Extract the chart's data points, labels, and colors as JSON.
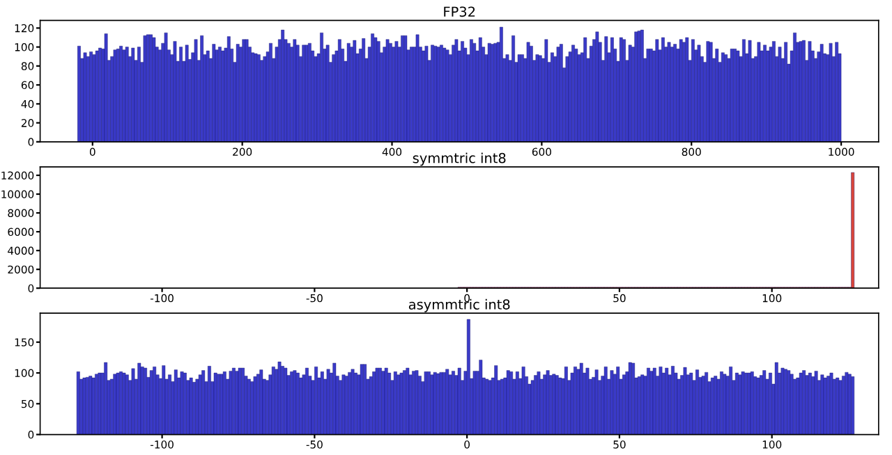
{
  "chart_data": [
    {
      "type": "histogram",
      "title": "FP32",
      "color": "#3a3ac8",
      "xlim": [
        -70,
        1050
      ],
      "xticks": [
        0,
        200,
        400,
        600,
        800,
        1000
      ],
      "ylim": [
        0,
        128
      ],
      "yticks": [
        0,
        20,
        40,
        60,
        80,
        100,
        120
      ],
      "grid": false,
      "bins": [
        -20,
        -16,
        -12,
        -8,
        -4,
        0,
        4,
        8,
        12,
        16,
        20,
        24,
        28,
        32,
        36,
        40,
        44,
        48,
        52,
        56,
        60,
        64,
        68,
        72,
        76,
        80,
        84,
        88,
        92,
        96,
        100,
        104,
        108,
        112,
        116,
        120,
        124,
        128,
        132,
        136,
        140,
        144,
        148,
        152,
        156,
        160,
        164,
        168,
        172,
        176,
        180,
        184,
        188,
        192,
        196,
        200,
        204,
        208,
        212,
        216,
        220,
        224,
        228,
        232,
        236,
        240,
        244,
        248,
        252,
        256,
        260,
        264,
        268,
        272,
        276,
        280,
        284,
        288,
        292,
        296,
        300,
        304,
        308,
        312,
        316,
        320,
        324,
        328,
        332,
        336,
        340,
        344,
        348,
        352,
        356,
        360,
        364,
        368,
        372,
        376,
        380,
        384,
        388,
        392,
        396,
        400,
        404,
        408,
        412,
        416,
        420,
        424,
        428,
        432,
        436,
        440,
        444,
        448,
        452,
        456,
        460,
        464,
        468,
        472,
        476,
        480,
        484,
        488,
        492,
        496,
        500,
        504,
        508,
        512,
        516,
        520,
        524,
        528,
        532,
        536,
        540,
        544,
        548,
        552,
        556,
        560,
        564,
        568,
        572,
        576,
        580,
        584,
        588,
        592,
        596,
        600,
        604,
        608,
        612,
        616,
        620,
        624,
        628,
        632,
        636,
        640,
        644,
        648,
        652,
        656,
        660,
        664,
        668,
        672,
        676,
        680,
        684,
        688,
        692,
        696,
        700,
        704,
        708,
        712,
        716,
        720,
        724,
        728,
        732,
        736,
        740,
        744,
        748,
        752,
        756,
        760,
        764,
        768,
        772,
        776,
        780,
        784,
        788,
        792,
        796,
        800,
        804,
        808,
        812,
        816,
        820,
        824,
        828,
        832,
        836,
        840,
        844,
        848,
        852,
        856,
        860,
        864,
        868,
        872,
        876,
        880,
        884,
        888,
        892,
        896,
        900,
        904,
        908,
        912,
        916,
        920,
        924,
        928,
        932,
        936,
        940,
        944,
        948,
        952,
        956,
        960,
        964,
        968,
        972,
        976,
        980,
        984,
        988,
        992,
        996,
        1000
      ],
      "values": [
        101,
        88,
        94,
        90,
        95,
        92,
        96,
        99,
        98,
        114,
        86,
        90,
        97,
        98,
        101,
        97,
        100,
        90,
        99,
        86,
        100,
        84,
        112,
        113,
        113,
        110,
        100,
        97,
        104,
        115,
        97,
        92,
        106,
        85,
        100,
        85,
        102,
        87,
        94,
        108,
        86,
        112,
        92,
        96,
        88,
        103,
        97,
        100,
        96,
        99,
        111,
        98,
        84,
        103,
        100,
        108,
        108,
        100,
        94,
        93,
        92,
        86,
        90,
        95,
        104,
        88,
        100,
        108,
        118,
        108,
        104,
        100,
        108,
        102,
        90,
        102,
        102,
        104,
        96,
        90,
        93,
        115,
        98,
        102,
        84,
        92,
        96,
        108,
        98,
        85,
        104,
        100,
        107,
        93,
        98,
        109,
        88,
        100,
        114,
        110,
        106,
        94,
        100,
        108,
        104,
        100,
        106,
        100,
        112,
        112,
        97,
        100,
        100,
        113,
        100,
        96,
        101,
        86,
        102,
        101,
        100,
        102,
        99,
        97,
        92,
        102,
        108,
        96,
        106,
        99,
        92,
        108,
        104,
        96,
        110,
        100,
        92,
        104,
        103,
        104,
        105,
        121,
        88,
        92,
        86,
        112,
        84,
        92,
        92,
        88,
        105,
        101,
        86,
        92,
        91,
        88,
        108,
        84,
        94,
        90,
        100,
        103,
        78,
        90,
        95,
        102,
        98,
        92,
        94,
        110,
        88,
        101,
        108,
        116,
        105,
        86,
        111,
        94,
        110,
        98,
        85,
        110,
        108,
        86,
        102,
        100,
        116,
        117,
        118,
        88,
        98,
        98,
        96,
        108,
        97,
        110,
        100,
        105,
        100,
        103,
        98,
        108,
        105,
        110,
        86,
        108,
        97,
        102,
        90,
        84,
        106,
        105,
        88,
        98,
        84,
        94,
        92,
        88,
        98,
        98,
        96,
        90,
        108,
        93,
        107,
        88,
        90,
        105,
        96,
        102,
        96,
        100,
        106,
        90,
        100,
        88,
        105,
        82,
        96,
        115,
        105,
        106,
        107,
        86,
        106,
        96,
        88,
        95,
        103,
        93,
        92,
        104,
        90,
        105,
        93
      ]
    },
    {
      "type": "histogram",
      "title": "symmtric int8",
      "color": "#d9443a",
      "xlim": [
        -140,
        135
      ],
      "xticks": [
        -100,
        -50,
        0,
        50,
        100
      ],
      "ylim": [
        0,
        12900
      ],
      "yticks": [
        0,
        2000,
        4000,
        6000,
        8000,
        10000,
        12000
      ],
      "grid": false,
      "bins": [
        -3,
        -2,
        -1,
        0,
        1,
        2,
        3,
        4,
        5,
        6,
        7,
        8,
        9,
        10,
        11,
        12,
        13,
        14,
        15,
        16,
        17,
        18,
        19,
        20,
        21,
        22,
        23,
        24,
        25,
        26,
        27,
        28,
        29,
        30,
        31,
        32,
        33,
        34,
        35,
        36,
        37,
        38,
        39,
        40,
        41,
        42,
        43,
        44,
        45,
        46,
        47,
        48,
        49,
        50,
        51,
        52,
        53,
        54,
        55,
        56,
        57,
        58,
        59,
        60,
        61,
        62,
        63,
        64,
        65,
        66,
        67,
        68,
        69,
        70,
        71,
        72,
        73,
        74,
        75,
        76,
        77,
        78,
        79,
        80,
        81,
        82,
        83,
        84,
        85,
        86,
        87,
        88,
        89,
        90,
        91,
        92,
        93,
        94,
        95,
        96,
        97,
        98,
        99,
        100,
        101,
        102,
        103,
        104,
        105,
        106,
        107,
        108,
        109,
        110,
        111,
        112,
        113,
        114,
        115,
        116,
        117,
        118,
        119,
        120,
        121,
        122,
        123,
        124,
        125,
        126,
        127
      ],
      "values": [
        100,
        100,
        100,
        100,
        100,
        100,
        100,
        100,
        100,
        100,
        100,
        100,
        100,
        100,
        100,
        100,
        100,
        100,
        100,
        100,
        100,
        100,
        100,
        100,
        100,
        100,
        100,
        100,
        100,
        100,
        100,
        100,
        100,
        100,
        100,
        100,
        100,
        100,
        100,
        100,
        100,
        100,
        100,
        100,
        100,
        100,
        100,
        100,
        100,
        100,
        100,
        100,
        100,
        100,
        100,
        100,
        100,
        100,
        100,
        100,
        100,
        100,
        100,
        100,
        100,
        100,
        100,
        100,
        100,
        100,
        100,
        100,
        100,
        100,
        100,
        100,
        100,
        100,
        100,
        100,
        100,
        100,
        100,
        100,
        100,
        100,
        100,
        100,
        100,
        100,
        100,
        100,
        100,
        100,
        100,
        100,
        100,
        100,
        100,
        100,
        100,
        100,
        100,
        100,
        100,
        100,
        100,
        100,
        100,
        100,
        100,
        100,
        100,
        100,
        100,
        100,
        100,
        100,
        100,
        100,
        100,
        100,
        100,
        100,
        100,
        100,
        100,
        100,
        100,
        12300
      ]
    },
    {
      "type": "histogram",
      "title": "asymmtric int8",
      "color": "#3a3ac8",
      "xlim": [
        -140,
        135
      ],
      "xticks": [
        -100,
        -50,
        0,
        50,
        100
      ],
      "ylim": [
        0,
        197
      ],
      "yticks": [
        0,
        50,
        100,
        150
      ],
      "grid": false,
      "bins": [
        -128,
        -127,
        -126,
        -125,
        -124,
        -123,
        -122,
        -121,
        -120,
        -119,
        -118,
        -117,
        -116,
        -115,
        -114,
        -113,
        -112,
        -111,
        -110,
        -109,
        -108,
        -107,
        -106,
        -105,
        -104,
        -103,
        -102,
        -101,
        -100,
        -99,
        -98,
        -97,
        -96,
        -95,
        -94,
        -93,
        -92,
        -91,
        -90,
        -89,
        -88,
        -87,
        -86,
        -85,
        -84,
        -83,
        -82,
        -81,
        -80,
        -79,
        -78,
        -77,
        -76,
        -75,
        -74,
        -73,
        -72,
        -71,
        -70,
        -69,
        -68,
        -67,
        -66,
        -65,
        -64,
        -63,
        -62,
        -61,
        -60,
        -59,
        -58,
        -57,
        -56,
        -55,
        -54,
        -53,
        -52,
        -51,
        -50,
        -49,
        -48,
        -47,
        -46,
        -45,
        -44,
        -43,
        -42,
        -41,
        -40,
        -39,
        -38,
        -37,
        -36,
        -35,
        -34,
        -33,
        -32,
        -31,
        -30,
        -29,
        -28,
        -27,
        -26,
        -25,
        -24,
        -23,
        -22,
        -21,
        -20,
        -19,
        -18,
        -17,
        -16,
        -15,
        -14,
        -13,
        -12,
        -11,
        -10,
        -9,
        -8,
        -7,
        -6,
        -5,
        -4,
        -3,
        -2,
        -1,
        0,
        1,
        2,
        3,
        4,
        5,
        6,
        7,
        8,
        9,
        10,
        11,
        12,
        13,
        14,
        15,
        16,
        17,
        18,
        19,
        20,
        21,
        22,
        23,
        24,
        25,
        26,
        27,
        28,
        29,
        30,
        31,
        32,
        33,
        34,
        35,
        36,
        37,
        38,
        39,
        40,
        41,
        42,
        43,
        44,
        45,
        46,
        47,
        48,
        49,
        50,
        51,
        52,
        53,
        54,
        55,
        56,
        57,
        58,
        59,
        60,
        61,
        62,
        63,
        64,
        65,
        66,
        67,
        68,
        69,
        70,
        71,
        72,
        73,
        74,
        75,
        76,
        77,
        78,
        79,
        80,
        81,
        82,
        83,
        84,
        85,
        86,
        87,
        88,
        89,
        90,
        91,
        92,
        93,
        94,
        95,
        96,
        97,
        98,
        99,
        100,
        101,
        102,
        103,
        104,
        105,
        106,
        107,
        108,
        109,
        110,
        111,
        112,
        113,
        114,
        115,
        116,
        117,
        118,
        119,
        120,
        121,
        122,
        123,
        124,
        125,
        126,
        127
      ],
      "values": [
        102,
        90,
        92,
        93,
        95,
        92,
        98,
        100,
        100,
        117,
        88,
        90,
        98,
        100,
        102,
        100,
        97,
        88,
        107,
        90,
        116,
        110,
        108,
        93,
        104,
        110,
        97,
        91,
        112,
        90,
        97,
        86,
        105,
        92,
        102,
        100,
        88,
        92,
        85,
        90,
        97,
        104,
        86,
        111,
        86,
        100,
        98,
        98,
        102,
        90,
        103,
        108,
        103,
        108,
        108,
        95,
        90,
        86,
        94,
        98,
        105,
        90,
        88,
        97,
        110,
        106,
        118,
        111,
        108,
        96,
        102,
        104,
        100,
        92,
        97,
        108,
        95,
        88,
        110,
        92,
        102,
        90,
        106,
        100,
        116,
        95,
        88,
        97,
        95,
        101,
        106,
        100,
        97,
        114,
        114,
        90,
        94,
        102,
        108,
        108,
        103,
        108,
        100,
        88,
        102,
        97,
        100,
        104,
        108,
        97,
        103,
        104,
        95,
        86,
        102,
        102,
        97,
        101,
        99,
        101,
        101,
        106,
        97,
        103,
        96,
        108,
        88,
        103,
        187,
        91,
        103,
        103,
        121,
        92,
        90,
        88,
        92,
        112,
        88,
        90,
        92,
        104,
        102,
        90,
        102,
        91,
        110,
        94,
        82,
        88,
        96,
        102,
        90,
        97,
        104,
        96,
        98,
        96,
        92,
        91,
        110,
        88,
        100,
        110,
        106,
        116,
        100,
        108,
        90,
        93,
        105,
        88,
        95,
        110,
        90,
        104,
        98,
        110,
        90,
        97,
        102,
        117,
        116,
        92,
        94,
        97,
        95,
        108,
        103,
        108,
        95,
        110,
        100,
        108,
        97,
        111,
        100,
        90,
        96,
        109,
        97,
        100,
        88,
        105,
        93,
        95,
        101,
        86,
        92,
        95,
        90,
        102,
        98,
        95,
        110,
        88,
        100,
        97,
        102,
        100,
        100,
        102,
        94,
        92,
        96,
        104,
        90,
        100,
        82,
        117,
        100,
        108,
        106,
        104,
        98,
        90,
        92,
        100,
        104,
        96,
        100,
        94,
        103,
        88,
        97,
        92,
        95,
        100,
        90,
        92,
        88,
        95,
        101,
        98,
        94
      ]
    }
  ]
}
